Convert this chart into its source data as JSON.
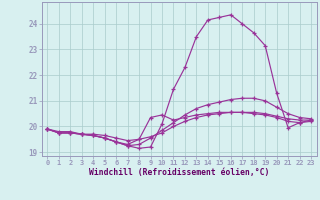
{
  "xlabel": "Windchill (Refroidissement éolien,°C)",
  "x": [
    0,
    1,
    2,
    3,
    4,
    5,
    6,
    7,
    8,
    9,
    10,
    11,
    12,
    13,
    14,
    15,
    16,
    17,
    18,
    19,
    20,
    21,
    22,
    23
  ],
  "line1": [
    19.9,
    19.8,
    19.8,
    19.7,
    19.7,
    19.65,
    19.55,
    19.45,
    19.5,
    19.6,
    19.75,
    20.0,
    20.2,
    20.35,
    20.45,
    20.5,
    20.55,
    20.55,
    20.5,
    20.45,
    20.35,
    20.2,
    20.15,
    20.2
  ],
  "line2": [
    19.9,
    19.75,
    19.75,
    19.7,
    19.65,
    19.55,
    19.4,
    19.25,
    19.15,
    19.2,
    20.1,
    21.45,
    22.3,
    23.5,
    24.15,
    24.25,
    24.35,
    24.0,
    23.65,
    23.15,
    21.3,
    19.95,
    20.15,
    20.25
  ],
  "line3": [
    19.9,
    19.75,
    19.75,
    19.7,
    19.65,
    19.55,
    19.4,
    19.25,
    19.3,
    19.55,
    19.85,
    20.15,
    20.45,
    20.7,
    20.85,
    20.95,
    21.05,
    21.1,
    21.1,
    21.0,
    20.75,
    20.5,
    20.35,
    20.3
  ],
  "line4": [
    19.9,
    19.75,
    19.75,
    19.7,
    19.65,
    19.55,
    19.4,
    19.3,
    19.5,
    20.35,
    20.45,
    20.25,
    20.35,
    20.45,
    20.5,
    20.55,
    20.55,
    20.55,
    20.55,
    20.5,
    20.4,
    20.3,
    20.25,
    20.25
  ],
  "line_color": "#993399",
  "bg_color": "#d8f0f0",
  "grid_color": "#aacccc",
  "spine_color": "#9999bb",
  "text_color": "#660066",
  "ylim": [
    18.85,
    24.85
  ],
  "yticks": [
    19,
    20,
    21,
    22,
    23,
    24
  ],
  "xticks": [
    0,
    1,
    2,
    3,
    4,
    5,
    6,
    7,
    8,
    9,
    10,
    11,
    12,
    13,
    14,
    15,
    16,
    17,
    18,
    19,
    20,
    21,
    22,
    23
  ]
}
